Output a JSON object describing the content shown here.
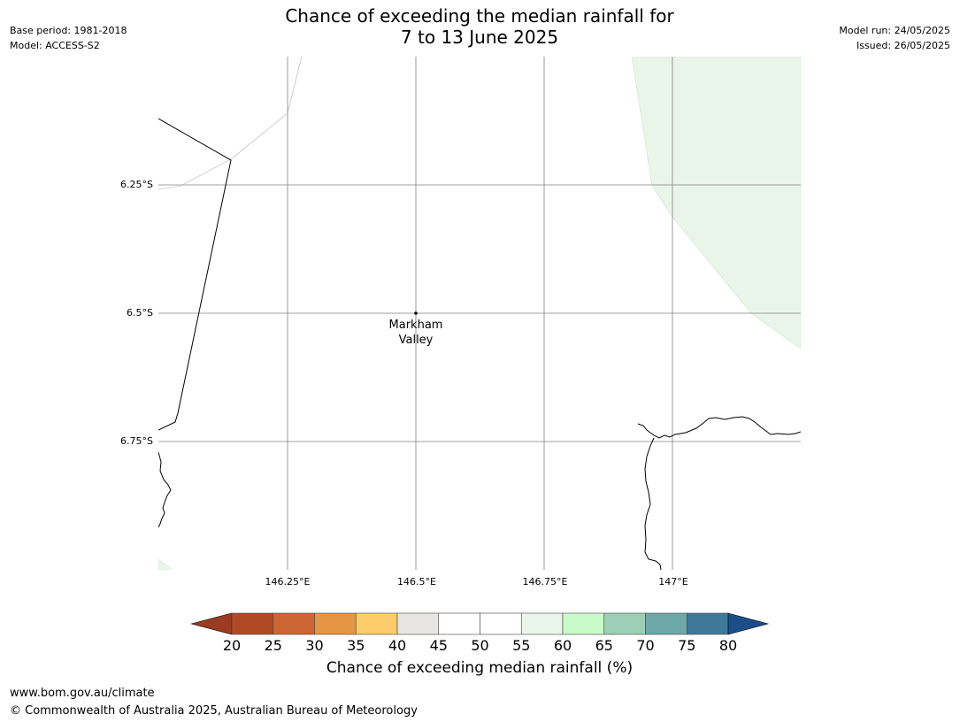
{
  "header": {
    "title_line1": "Chance of exceeding the median rainfall for",
    "title_line2": "7 to 13 June 2025",
    "base_period": "Base period: 1981-2018",
    "model": "Model: ACCESS-S2",
    "model_run": "Model run: 24/05/2025",
    "issued": "Issued: 26/05/2025"
  },
  "map": {
    "place_label_line1": "Markham",
    "place_label_line2": "Valley",
    "lat_labels": [
      "6.25°S",
      "6.5°S",
      "6.75°S"
    ],
    "lon_labels": [
      "146.25°E",
      "146.5°E",
      "146.75°E",
      "147°E"
    ],
    "shaded_region_color": "#eaf5ea",
    "grid_color": "#808080"
  },
  "colorbar": {
    "label": "Chance of exceeding median rainfall (%)",
    "ticks": [
      "20",
      "25",
      "30",
      "35",
      "40",
      "45",
      "50",
      "55",
      "60",
      "65",
      "70",
      "75",
      "80"
    ],
    "low_extend_color": "#9a3b22",
    "high_extend_color": "#1b4e88",
    "colors": [
      "#b04a25",
      "#cd6532",
      "#e39646",
      "#fecc6a",
      "#e8e6e3",
      "#ffffff",
      "#ffffff",
      "#eaf5ea",
      "#c8fbc8",
      "#9ccfb6",
      "#6ea7a7",
      "#40789a"
    ]
  },
  "footer": {
    "url": "www.bom.gov.au/climate",
    "copyright": "© Commonwealth of Australia 2025, Australian Bureau of Meteorology"
  }
}
